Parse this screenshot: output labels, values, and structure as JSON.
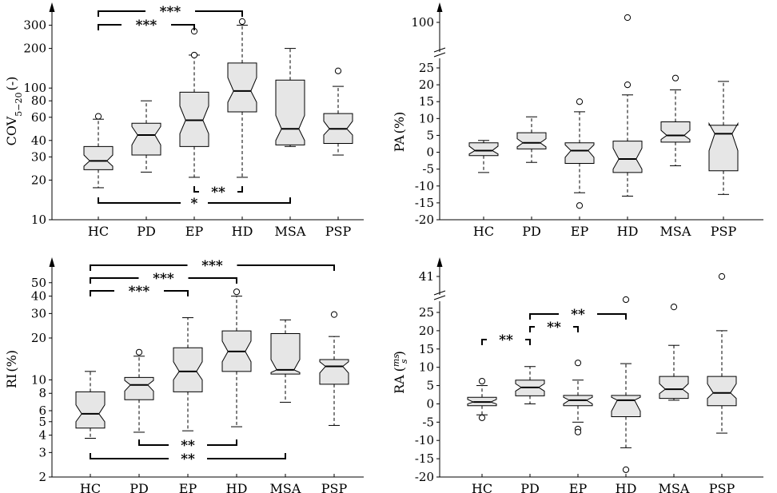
{
  "chart_data": [
    {
      "id": "cov",
      "type": "boxplot",
      "scale": "log",
      "ylabel": "COV",
      "ylabel_sub": "5−20",
      "ylabel_suffix": "(-)",
      "yticks": [
        {
          "v": 10,
          "label": "10"
        },
        {
          "v": 20,
          "label": "20"
        },
        {
          "v": 30,
          "label": "30"
        },
        {
          "v": 40,
          "label": "40"
        },
        {
          "v": 60,
          "label": "60"
        },
        {
          "v": 80,
          "label": "80"
        },
        {
          "v": 100,
          "label": "100"
        },
        {
          "v": 200,
          "label": "200"
        },
        {
          "v": 300,
          "label": "300"
        }
      ],
      "categories": [
        "HC",
        "PD",
        "EP",
        "HD",
        "MSA",
        "PSP"
      ],
      "boxes": [
        {
          "cat": "HC",
          "wlo": 17.5,
          "q1": 24,
          "n1": 25.5,
          "med": 28,
          "n2": 31,
          "q3": 36,
          "whi": 58,
          "outliers": [
            61
          ]
        },
        {
          "cat": "PD",
          "wlo": 23,
          "q1": 31,
          "n1": 37,
          "med": 44,
          "n2": 51,
          "q3": 54,
          "whi": 80,
          "outliers": []
        },
        {
          "cat": "EP",
          "wlo": 21,
          "q1": 36,
          "n1": 45,
          "med": 57,
          "n2": 73,
          "q3": 93,
          "whi": 178,
          "outliers": [
            178,
            270
          ]
        },
        {
          "cat": "HD",
          "wlo": 21,
          "q1": 66,
          "n1": 78,
          "med": 95,
          "n2": 120,
          "q3": 155,
          "whi": 300,
          "outliers": [
            320
          ]
        },
        {
          "cat": "MSA",
          "wlo": 36,
          "q1": 37,
          "n1": 40,
          "med": 49,
          "n2": 62,
          "q3": 115,
          "whi": 200,
          "outliers": []
        },
        {
          "cat": "PSP",
          "wlo": 31,
          "q1": 38,
          "n1": 44,
          "med": 49,
          "n2": 56,
          "q3": 64,
          "whi": 103,
          "outliers": [
            135
          ]
        }
      ],
      "brackets": [
        {
          "from": "HC",
          "to": "HD",
          "label": "***",
          "pos": "top",
          "level": 0
        },
        {
          "from": "HC",
          "to": "EP",
          "label": "***",
          "pos": "top",
          "level": 1
        },
        {
          "from": "EP",
          "to": "HD",
          "label": "**",
          "pos": "bottom",
          "level": 0
        },
        {
          "from": "HC",
          "to": "MSA",
          "label": "*",
          "pos": "bottom",
          "level": 1
        }
      ]
    },
    {
      "id": "pa",
      "type": "boxplot",
      "scale": "linear-break",
      "ylabel": "PA",
      "ylabel_suffix": "(%)",
      "yticks": [
        {
          "v": -20,
          "label": "-20"
        },
        {
          "v": -15,
          "label": "-15"
        },
        {
          "v": -10,
          "label": "-10"
        },
        {
          "v": -5,
          "label": "-5"
        },
        {
          "v": 0,
          "label": "0"
        },
        {
          "v": 5,
          "label": "5"
        },
        {
          "v": 10,
          "label": "10"
        },
        {
          "v": 15,
          "label": "15"
        },
        {
          "v": 20,
          "label": "20"
        },
        {
          "v": 25,
          "label": "25"
        }
      ],
      "break_label": {
        "v": 100,
        "label": "100"
      },
      "categories": [
        "HC",
        "PD",
        "EP",
        "HD",
        "MSA",
        "PSP"
      ],
      "boxes": [
        {
          "cat": "HC",
          "wlo": -6,
          "q1": -1,
          "n1": -0.5,
          "med": 0.5,
          "n2": 1.8,
          "q3": 2.8,
          "whi": 3.5,
          "outliers": []
        },
        {
          "cat": "PD",
          "wlo": -3,
          "q1": 1,
          "n1": 1.6,
          "med": 2.8,
          "n2": 4,
          "q3": 5.8,
          "whi": 10.5,
          "outliers": []
        },
        {
          "cat": "EP",
          "wlo": -12,
          "q1": -3.3,
          "n1": -1.5,
          "med": 0.5,
          "n2": 2.2,
          "q3": 2.8,
          "whi": 12,
          "outliers": [
            15,
            -15.8
          ]
        },
        {
          "cat": "HD",
          "wlo": -13,
          "q1": -6,
          "n1": -5,
          "med": -2,
          "n2": 1.2,
          "q3": 3.3,
          "whi": 17,
          "outliers": [
            20,
            110
          ]
        },
        {
          "cat": "MSA",
          "wlo": -4,
          "q1": 3,
          "n1": 3.8,
          "med": 5,
          "n2": 6.5,
          "q3": 9,
          "whi": 18.5,
          "outliers": [
            22
          ]
        },
        {
          "cat": "PSP",
          "wlo": -12.5,
          "q1": -5.5,
          "n1": 0.5,
          "med": 5.5,
          "n2": 8.5,
          "q3": 8,
          "whi": 21,
          "outliers": []
        }
      ],
      "brackets": []
    },
    {
      "id": "ri",
      "type": "boxplot",
      "scale": "log",
      "ylabel": "RI",
      "ylabel_suffix": "(%)",
      "yticks": [
        {
          "v": 2,
          "label": "2"
        },
        {
          "v": 3,
          "label": "3"
        },
        {
          "v": 4,
          "label": "4"
        },
        {
          "v": 5,
          "label": "5"
        },
        {
          "v": 6,
          "label": "6"
        },
        {
          "v": 8,
          "label": "8"
        },
        {
          "v": 10,
          "label": "10"
        },
        {
          "v": 20,
          "label": "20"
        },
        {
          "v": 30,
          "label": "30"
        },
        {
          "v": 40,
          "label": "40"
        },
        {
          "v": 50,
          "label": "50"
        }
      ],
      "categories": [
        "HC",
        "PD",
        "EP",
        "HD",
        "MSA",
        "PSP"
      ],
      "boxes": [
        {
          "cat": "HC",
          "wlo": 3.8,
          "q1": 4.5,
          "n1": 5,
          "med": 5.7,
          "n2": 6.6,
          "q3": 8.2,
          "whi": 11.5,
          "outliers": []
        },
        {
          "cat": "PD",
          "wlo": 4.2,
          "q1": 7.2,
          "n1": 8.3,
          "med": 9.2,
          "n2": 9.9,
          "q3": 10.4,
          "whi": 14.8,
          "outliers": [
            15.8
          ]
        },
        {
          "cat": "EP",
          "wlo": 4.3,
          "q1": 8.2,
          "n1": 10,
          "med": 11.5,
          "n2": 13.5,
          "q3": 17,
          "whi": 28,
          "outliers": []
        },
        {
          "cat": "HD",
          "wlo": 4.6,
          "q1": 11.5,
          "n1": 13.5,
          "med": 16,
          "n2": 19,
          "q3": 22.5,
          "whi": 40,
          "outliers": [
            43
          ]
        },
        {
          "cat": "MSA",
          "wlo": 6.9,
          "q1": 11,
          "n1": 11.3,
          "med": 11.8,
          "n2": 14,
          "q3": 21.5,
          "whi": 27,
          "outliers": []
        },
        {
          "cat": "PSP",
          "wlo": 4.7,
          "q1": 9.3,
          "n1": 11.2,
          "med": 12.5,
          "n2": 13.5,
          "q3": 14,
          "whi": 20.5,
          "outliers": [
            29.5
          ]
        }
      ],
      "brackets": [
        {
          "from": "HC",
          "to": "PSP",
          "label": "***",
          "pos": "top",
          "level": 0
        },
        {
          "from": "HC",
          "to": "HD",
          "label": "***",
          "pos": "top",
          "level": 1
        },
        {
          "from": "HC",
          "to": "EP",
          "label": "***",
          "pos": "top",
          "level": 2
        },
        {
          "from": "PD",
          "to": "HD",
          "label": "**",
          "pos": "bottom",
          "level": 0
        },
        {
          "from": "HC",
          "to": "MSA",
          "label": "**",
          "pos": "bottom",
          "level": 1
        }
      ]
    },
    {
      "id": "ra",
      "type": "boxplot",
      "scale": "linear-break",
      "ylabel": "RA",
      "ylabel_unit_num": "ms",
      "ylabel_unit_den": "s",
      "yticks": [
        {
          "v": -20,
          "label": "-20"
        },
        {
          "v": -15,
          "label": "-15"
        },
        {
          "v": -10,
          "label": "-10"
        },
        {
          "v": -5,
          "label": "-5"
        },
        {
          "v": 0,
          "label": "0"
        },
        {
          "v": 5,
          "label": "5"
        },
        {
          "v": 10,
          "label": "10"
        },
        {
          "v": 15,
          "label": "15"
        },
        {
          "v": 20,
          "label": "20"
        },
        {
          "v": 25,
          "label": "25"
        }
      ],
      "break_label": {
        "v": 41,
        "label": "41"
      },
      "categories": [
        "HC",
        "PD",
        "EP",
        "HD",
        "MSA",
        "PSP"
      ],
      "boxes": [
        {
          "cat": "HC",
          "wlo": -3,
          "q1": -0.5,
          "n1": 0,
          "med": 0.5,
          "n2": 1.2,
          "q3": 1.8,
          "whi": 5,
          "outliers": [
            6.2,
            -3.8
          ]
        },
        {
          "cat": "PD",
          "wlo": 0,
          "q1": 2.2,
          "n1": 3.5,
          "med": 4.5,
          "n2": 5.5,
          "q3": 6.5,
          "whi": 10.2,
          "outliers": []
        },
        {
          "cat": "EP",
          "wlo": -5,
          "q1": -0.5,
          "n1": 0,
          "med": 1,
          "n2": 1.8,
          "q3": 2.3,
          "whi": 6.5,
          "outliers": [
            11.2,
            -6.9,
            -7.7
          ]
        },
        {
          "cat": "HD",
          "wlo": -12,
          "q1": -3.5,
          "n1": -2,
          "med": 1,
          "n2": 1.8,
          "q3": 2.3,
          "whi": 11,
          "outliers": [
            28.5,
            -18
          ]
        },
        {
          "cat": "MSA",
          "wlo": 1,
          "q1": 1.5,
          "n1": 2.8,
          "med": 4,
          "n2": 5.5,
          "q3": 7.5,
          "whi": 16,
          "outliers": [
            26.5
          ]
        },
        {
          "cat": "PSP",
          "wlo": -8,
          "q1": -0.5,
          "n1": 1.5,
          "med": 3,
          "n2": 5.5,
          "q3": 7.5,
          "whi": 20,
          "outliers": [
            41
          ]
        }
      ],
      "brackets": [
        {
          "from": "PD",
          "to": "HD",
          "label": "**",
          "pos": "top",
          "level": 0
        },
        {
          "from": "PD",
          "to": "EP",
          "label": "**",
          "pos": "top",
          "level": 1
        },
        {
          "from": "HC",
          "to": "PD",
          "label": "**",
          "pos": "top",
          "level": 2
        }
      ]
    }
  ]
}
